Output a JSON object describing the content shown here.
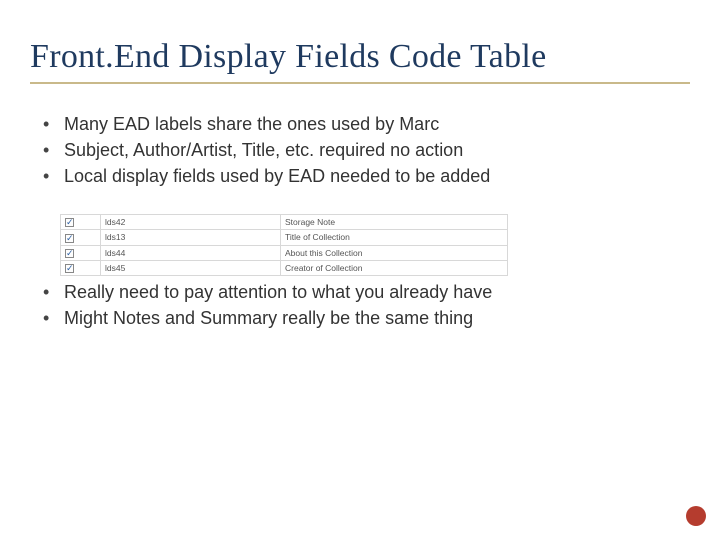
{
  "title": "Front.End Display Fields Code Table",
  "title_color": "#1f3a5f",
  "title_fontsize": 34,
  "underline_color": "#c9b98a",
  "bullets_top": [
    "Many EAD labels share the ones used by Marc",
    "Subject, Author/Artist, Title, etc. required no action",
    "Local display fields used by EAD needed to be added"
  ],
  "table": {
    "rows": [
      {
        "checked": true,
        "code": "lds42",
        "label": "Storage Note"
      },
      {
        "checked": true,
        "code": "lds13",
        "label": "Title of Collection"
      },
      {
        "checked": true,
        "code": "lds44",
        "label": "About this Collection"
      },
      {
        "checked": true,
        "code": "lds45",
        "label": "Creator of Collection"
      }
    ],
    "border_color": "#d8d8d8",
    "font_size": 8.5
  },
  "bullets_bottom": [
    "Really need to pay attention to what you already have",
    "Might Notes and Summary really be the same thing"
  ],
  "accent_dot_color": "#b53c2e",
  "body_fontsize": 18,
  "body_color": "#333333",
  "background_color": "#ffffff"
}
